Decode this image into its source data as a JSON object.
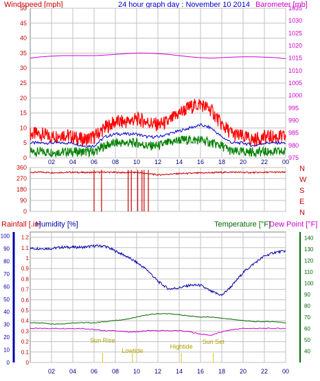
{
  "header": {
    "left_title": "Windspeed [mph]",
    "center_title": "24 hour graph day : November 10 2014",
    "right_title": "Barometer [mb]"
  },
  "colors": {
    "wind_gust": "#ff0000",
    "wind_avg": "#0000cc",
    "wind_low": "#008000",
    "barometer": "#cc00cc",
    "direction": "#cc0000",
    "humidity": "#0000aa",
    "temperature": "#006600",
    "dew_point": "#cc00cc",
    "rain": "#cc0000",
    "event": "#cccc00",
    "grid": "#c0c0c0"
  },
  "chart_data": [
    {
      "type": "line",
      "name": "wind_barometer",
      "title": "24 hour graph day : November 10 2014",
      "ylabel": "Windspeed [mph]",
      "y2label": "Barometer [mb]",
      "ylim": [
        0,
        50
      ],
      "y2lim": [
        975,
        1035
      ],
      "yticks": [
        "0",
        "5",
        "10",
        "15",
        "20",
        "25",
        "30",
        "35",
        "40",
        "45",
        "50"
      ],
      "y2ticks": [
        "975",
        "980",
        "985",
        "990",
        "995",
        "1000",
        "1005",
        "1010",
        "1015",
        "1020",
        "1025",
        "1030",
        "1035"
      ],
      "x_ticks": [
        "02",
        "04",
        "06",
        "08",
        "10",
        "12",
        "14",
        "16",
        "18",
        "20",
        "22",
        "00"
      ],
      "x_hours": [
        0,
        1,
        2,
        3,
        4,
        5,
        6,
        7,
        8,
        9,
        10,
        11,
        12,
        13,
        14,
        15,
        16,
        17,
        18,
        19,
        20,
        21,
        22,
        23,
        24
      ],
      "series": [
        {
          "name": "gust",
          "values": [
            8,
            8,
            7,
            8,
            7,
            6,
            7,
            10,
            12,
            12,
            13,
            12,
            11,
            12,
            15,
            17,
            18,
            16,
            11,
            8,
            7,
            6,
            7,
            7,
            7
          ]
        },
        {
          "name": "average",
          "values": [
            5,
            5,
            5,
            5,
            5,
            4,
            4,
            7,
            8,
            8,
            8,
            7,
            7,
            8,
            9,
            10,
            11,
            10,
            7,
            5,
            5,
            4,
            5,
            5,
            5
          ]
        },
        {
          "name": "low",
          "values": [
            2,
            2,
            2,
            2,
            2,
            2,
            2,
            4,
            5,
            5,
            5,
            4,
            4,
            5,
            6,
            6,
            6,
            5,
            4,
            2,
            2,
            2,
            2,
            2,
            2
          ]
        },
        {
          "name": "barometer",
          "axis": "y2",
          "values": [
            1015,
            1015.5,
            1015.8,
            1016,
            1016,
            1016,
            1016,
            1016.2,
            1016.5,
            1016.8,
            1017,
            1017,
            1016.8,
            1016.5,
            1016,
            1015.5,
            1015.2,
            1015,
            1015.2,
            1015.4,
            1015.5,
            1015.5,
            1015.4,
            1015.2,
            1014.8
          ]
        }
      ]
    },
    {
      "type": "line",
      "name": "wind_direction",
      "ylim": [
        0,
        360
      ],
      "yticks": [
        "0",
        "90",
        "180",
        "270",
        "360"
      ],
      "compass": [
        "N",
        "W",
        "S",
        "E",
        "N"
      ],
      "series": [
        {
          "name": "direction",
          "values": [
            320,
            322,
            318,
            320,
            321,
            319,
            320,
            322,
            320,
            318,
            320,
            310,
            300,
            305,
            310,
            312,
            315,
            318,
            320,
            322,
            320,
            318,
            320,
            322,
            320
          ]
        }
      ],
      "drops_hours": [
        6.0,
        6.7,
        9.2,
        9.5,
        10.1,
        10.5,
        10.7,
        11.1
      ]
    },
    {
      "type": "line",
      "name": "rain_humidity_temperature",
      "ylabel_left": "Rainfall [.in]",
      "ylabel_humidity": "Humidity [%]",
      "ylabel_temp": "Temperature [°F]",
      "ylabel_dew": "Dew Point [°F]",
      "rain_ticks": [
        "0",
        "0.1",
        "0.2",
        "0.3",
        "0.4",
        "0.5",
        "0.6",
        "0.7",
        "0.8",
        "0.9",
        "1",
        "1.1",
        "1.2"
      ],
      "humidity_ticks": [
        "0",
        "10",
        "20",
        "30",
        "40",
        "50",
        "60",
        "70",
        "80",
        "90",
        "100"
      ],
      "temp_ticks": [
        "40",
        "50",
        "60",
        "70",
        "80",
        "90",
        "100",
        "110",
        "120",
        "130",
        "140"
      ],
      "temp_lim": [
        30,
        145
      ],
      "humidity_lim": [
        0,
        103
      ],
      "series": [
        {
          "name": "humidity",
          "values": [
            90,
            90,
            90,
            91,
            91,
            91,
            92,
            92,
            88,
            84,
            79,
            73,
            64,
            58,
            59,
            61,
            61,
            56,
            53,
            61,
            71,
            78,
            84,
            87,
            88
          ]
        },
        {
          "name": "temperature",
          "values": [
            65,
            65,
            64,
            64,
            65,
            65,
            65,
            66,
            67,
            68,
            70,
            72,
            73,
            73,
            72,
            71,
            70,
            70,
            69,
            68,
            67,
            66,
            66,
            66,
            65
          ]
        },
        {
          "name": "dew_point",
          "values": [
            60,
            60,
            60,
            60,
            60,
            60,
            59,
            58,
            58,
            57,
            57,
            58,
            58,
            58,
            58,
            57,
            55,
            54,
            57,
            59,
            60,
            60,
            60,
            60,
            60
          ]
        }
      ],
      "events": [
        {
          "label": "Sun Rise",
          "hour": 6.8
        },
        {
          "label": "Lowtide",
          "hour": 9.6
        },
        {
          "label": "Hightide",
          "hour": 14.2
        },
        {
          "label": "Sun Set",
          "hour": 17.2
        }
      ],
      "x_ticks": [
        "02",
        "04",
        "06",
        "08",
        "10",
        "12",
        "14",
        "16",
        "18",
        "20",
        "22",
        "00"
      ]
    }
  ]
}
